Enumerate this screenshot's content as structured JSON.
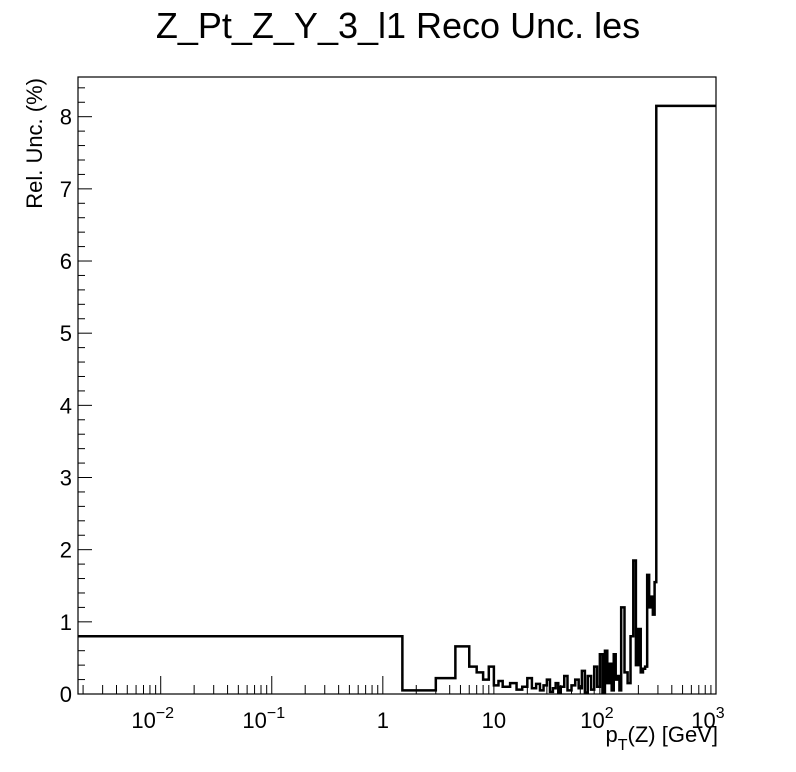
{
  "chart_data": {
    "type": "line",
    "title": "Z_Pt_Z_Y_3_l1 Reco Unc. les",
    "xlabel_main": "p",
    "xlabel_sub": "T",
    "xlabel_rest": "(Z) [GeV]",
    "ylabel": "Rel. Unc. (%)",
    "xscale": "log",
    "xlim": [
      0.0018,
      1000
    ],
    "ylim": [
      0,
      8.55
    ],
    "grid": false,
    "x_ticks": [
      {
        "value": 0.01,
        "base": "10",
        "exp": "−2"
      },
      {
        "value": 0.1,
        "base": "10",
        "exp": "−1"
      },
      {
        "value": 1,
        "base": "1",
        "exp": ""
      },
      {
        "value": 10,
        "base": "10",
        "exp": ""
      },
      {
        "value": 100,
        "base": "10",
        "exp": "2"
      },
      {
        "value": 1000,
        "base": "10",
        "exp": "3"
      }
    ],
    "y_ticks": [
      "0",
      "1",
      "2",
      "3",
      "4",
      "5",
      "6",
      "7",
      "8"
    ],
    "series": [
      {
        "edges": [
          0.0018,
          1.5,
          3,
          4.5,
          6,
          7,
          8,
          9,
          10,
          11,
          12,
          14,
          16,
          18,
          20,
          22,
          24,
          26,
          28,
          30,
          32,
          34,
          36,
          38,
          40,
          43,
          46,
          50,
          54,
          58,
          62,
          66,
          70,
          75,
          80,
          85,
          90,
          95,
          100,
          105,
          110,
          115,
          120,
          125,
          130,
          135,
          140,
          150,
          160,
          170,
          180,
          190,
          200,
          210,
          220,
          230,
          240,
          250,
          260,
          270,
          280,
          290,
          300,
          310,
          320,
          330,
          340,
          360,
          380,
          400,
          420,
          450,
          480,
          520,
          1000
        ],
        "values": [
          0.8,
          0.05,
          0.22,
          0.66,
          0.38,
          0.3,
          0.2,
          0.38,
          0.12,
          0.18,
          0.1,
          0.15,
          0.06,
          0.1,
          0.22,
          0.08,
          0.14,
          0.05,
          0.12,
          0.2,
          0.03,
          0.08,
          0.15,
          0.02,
          0.1,
          0.25,
          0.05,
          0.12,
          0.2,
          0.08,
          0.32,
          0.02,
          0.25,
          0.06,
          0.38,
          0.1,
          0.55,
          0.02,
          0.6,
          0.15,
          0.42,
          0.05,
          0.55,
          0.2,
          0.25,
          0.05,
          1.2,
          0.3,
          0.15,
          0.8,
          1.85,
          0.4,
          0.9,
          0.3,
          0.35,
          0.38,
          1.65,
          1.2,
          1.35,
          1.1,
          1.55,
          8.15,
          8.15,
          8.15,
          8.15,
          8.15,
          8.15,
          8.15,
          8.15,
          8.15,
          8.15,
          8.15,
          8.15,
          8.15
        ]
      }
    ]
  }
}
